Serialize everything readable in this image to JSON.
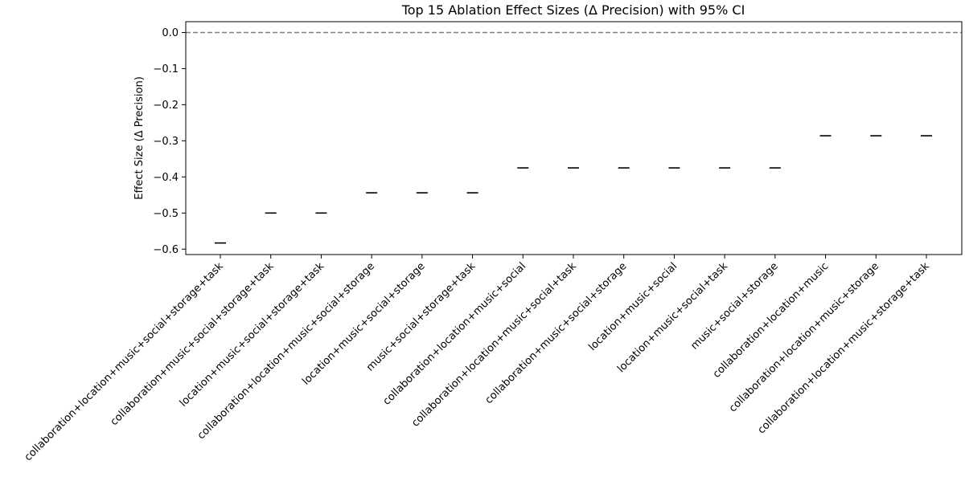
{
  "chart_data": {
    "type": "scatter",
    "title": "Top 15 Ablation Effect Sizes (Δ Precision) with 95% CI",
    "xlabel": "",
    "ylabel": "Effect Size (Δ Precision)",
    "ylim": [
      -0.615,
      0.03
    ],
    "yticks": [
      0.0,
      -0.1,
      -0.2,
      -0.3,
      -0.4,
      -0.5,
      -0.6
    ],
    "ytick_labels": [
      "0.0",
      "−0.1",
      "−0.2",
      "−0.3",
      "−0.4",
      "−0.5",
      "−0.6"
    ],
    "grid": false,
    "reference_line": {
      "y": 0.0,
      "style": "dashed",
      "color": "#808080"
    },
    "marker_color": "#000000",
    "categories": [
      "collaboration+location+music+social+storage+task",
      "collaboration+music+social+storage+task",
      "location+music+social+storage+task",
      "collaboration+location+music+social+storage",
      "location+music+social+storage",
      "music+social+storage+task",
      "collaboration+location+music+social",
      "collaboration+location+music+social+task",
      "collaboration+music+social+storage",
      "location+music+social",
      "location+music+social+task",
      "music+social+storage",
      "collaboration+location+music",
      "collaboration+location+music+storage",
      "collaboration+location+music+storage+task"
    ],
    "values": [
      -0.583,
      -0.5,
      -0.5,
      -0.444,
      -0.444,
      -0.444,
      -0.375,
      -0.375,
      -0.375,
      -0.375,
      -0.375,
      -0.375,
      -0.286,
      -0.286,
      -0.286
    ]
  }
}
